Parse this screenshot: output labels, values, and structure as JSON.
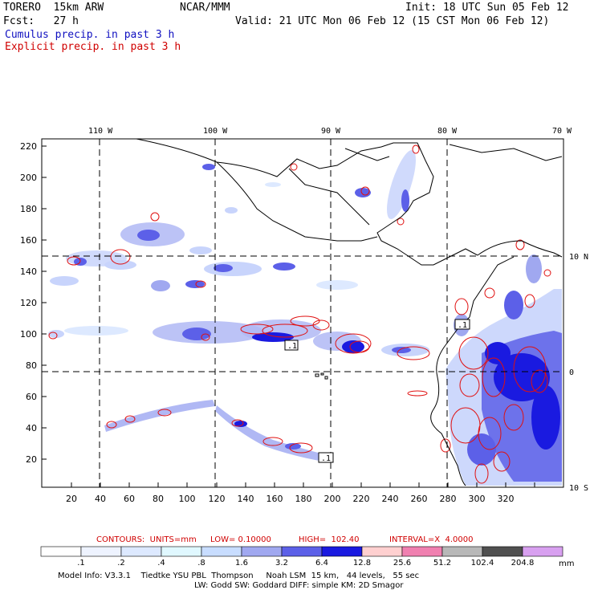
{
  "header": {
    "model_name": "TORERO  15km ARW",
    "org": "NCAR/MMM",
    "init": "Init: 18 UTC Sun 05 Feb 12",
    "fcst": "Fcst:   27 h",
    "valid": "Valid: 21 UTC Mon 06 Feb 12 (15 CST Mon 06 Feb 12)",
    "legend_cumulus": "Cumulus precip. in past 3 h",
    "legend_explicit": "Explicit precip. in past 3 h"
  },
  "map": {
    "lon_labels": [
      "110 W",
      "100 W",
      "90 W",
      "80 W",
      "70 W"
    ],
    "lat_labels": [
      "10 N",
      "0",
      "10 S"
    ],
    "y_ticks": [
      "220",
      "200",
      "180",
      "160",
      "140",
      "120",
      "100",
      "80",
      "60",
      "40",
      "20"
    ],
    "x_ticks": [
      "20",
      "40",
      "60",
      "80",
      "100",
      "120",
      "140",
      "160",
      "180",
      "200",
      "220",
      "240",
      "260",
      "280",
      "300",
      "320"
    ],
    "box_labels": [
      ".1",
      ".1",
      ".1"
    ]
  },
  "contours": {
    "label": "CONTOURS:  UNITS=mm",
    "low": "LOW= 0.10000",
    "high": "HIGH=  102.40",
    "interval": "INTERVAL=X  4.0000"
  },
  "colorbar": {
    "labels": [
      ".1",
      ".2",
      ".4",
      ".8",
      "1.6",
      "3.2",
      "6.4",
      "12.8",
      "25.6",
      "51.2",
      "102.4",
      "204.8"
    ],
    "unit": "mm",
    "colors": [
      "#ffffff",
      "#eef3ff",
      "#dde9ff",
      "#e0f8ff",
      "#c8ddff",
      "#a0a8f0",
      "#5c60e8",
      "#1a1ae0",
      "#ffd0d0",
      "#f080b0",
      "#b8b8b8",
      "#505050",
      "#d8a0f0"
    ]
  },
  "footer": {
    "line1": "Model Info: V3.3.1    Tiedtke YSU PBL  Thompson     Noah LSM  15 km,   44 levels,   55 sec",
    "line2": "LW: Godd SW: Goddard DIFF: simple KM: 2D Smagor"
  }
}
